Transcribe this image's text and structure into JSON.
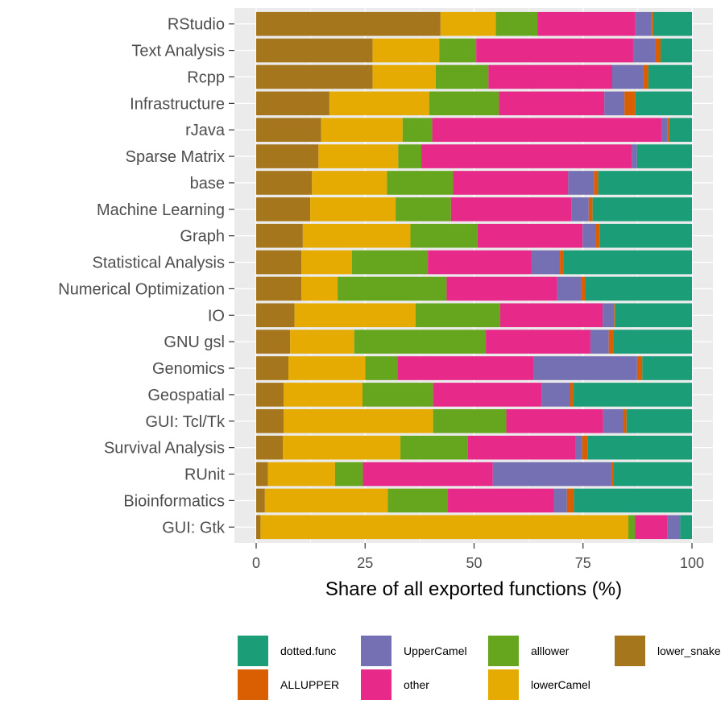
{
  "chart_data": {
    "type": "bar",
    "orientation": "horizontal",
    "stacked": true,
    "xlabel": "Share of all exported functions (%)",
    "ylabel": "",
    "xlim": [
      0,
      100
    ],
    "x_ticks": [
      0,
      25,
      50,
      75,
      100
    ],
    "grid": true,
    "legend_position": "bottom",
    "categories": [
      "RStudio",
      "Text Analysis",
      "Rcpp",
      "Infrastructure",
      "rJava",
      "Sparse Matrix",
      "base",
      "Machine Learning",
      "Graph",
      "Statistical Analysis",
      "Numerical Optimization",
      "IO",
      "GNU gsl",
      "Genomics",
      "Geospatial",
      "GUI: Tcl/Tk",
      "Survival Analysis",
      "RUnit",
      "Bioinformatics",
      "GUI: Gtk"
    ],
    "stack_order": [
      "lower_snake",
      "lowerCamel",
      "alllower",
      "other",
      "UpperCamel",
      "ALLUPPER",
      "dotted.func"
    ],
    "legend_order": [
      "dotted.func",
      "ALLUPPER",
      "UpperCamel",
      "other",
      "alllower",
      "lowerCamel",
      "lower_snake"
    ],
    "series": [
      {
        "name": "lower_snake",
        "color": "#A6761D",
        "values": [
          42.3,
          26.7,
          26.7,
          16.8,
          14.9,
          14.3,
          12.8,
          12.4,
          10.7,
          10.4,
          10.4,
          8.8,
          7.8,
          7.4,
          6.3,
          6.3,
          6.1,
          2.7,
          2.0,
          1.0
        ]
      },
      {
        "name": "lowerCamel",
        "color": "#E6AB02",
        "values": [
          12.7,
          15.3,
          14.5,
          22.9,
          18.7,
          18.3,
          17.2,
          19.6,
          24.7,
          11.6,
          8.3,
          27.8,
          14.7,
          17.6,
          18.1,
          34.3,
          27.0,
          15.4,
          28.2,
          84.4
        ]
      },
      {
        "name": "alllower",
        "color": "#66A61E",
        "values": [
          9.6,
          8.5,
          12.1,
          16.0,
          6.8,
          5.3,
          15.2,
          12.7,
          15.4,
          17.4,
          25.0,
          19.4,
          30.2,
          7.4,
          16.2,
          16.8,
          15.5,
          6.4,
          13.8,
          1.5
        ]
      },
      {
        "name": "other",
        "color": "#E7298A",
        "values": [
          22.4,
          36.0,
          28.4,
          24.2,
          52.7,
          48.3,
          26.4,
          27.6,
          24.1,
          23.8,
          25.4,
          23.5,
          24.0,
          31.3,
          24.9,
          22.2,
          24.6,
          29.8,
          24.3,
          7.5
        ]
      },
      {
        "name": "UpperCamel",
        "color": "#7570B3",
        "values": [
          3.7,
          5.1,
          7.1,
          4.6,
          1.2,
          1.2,
          5.9,
          4.0,
          3.1,
          6.5,
          5.4,
          2.6,
          4.2,
          23.7,
          6.5,
          4.6,
          1.6,
          27.2,
          3.0,
          2.9
        ]
      },
      {
        "name": "ALLUPPER",
        "color": "#D95F02",
        "values": [
          0.4,
          1.2,
          1.2,
          2.5,
          0.5,
          0.0,
          1.0,
          0.9,
          0.9,
          0.9,
          1.0,
          0.2,
          1.0,
          1.2,
          0.8,
          0.8,
          1.2,
          0.4,
          1.6,
          0.0
        ]
      },
      {
        "name": "dotted.func",
        "color": "#1B9E77",
        "values": [
          8.9,
          7.2,
          10.0,
          13.0,
          5.2,
          12.6,
          21.5,
          22.8,
          21.1,
          29.4,
          24.5,
          17.7,
          18.1,
          11.4,
          27.2,
          15.0,
          24.0,
          18.1,
          27.1,
          2.7
        ]
      }
    ]
  }
}
